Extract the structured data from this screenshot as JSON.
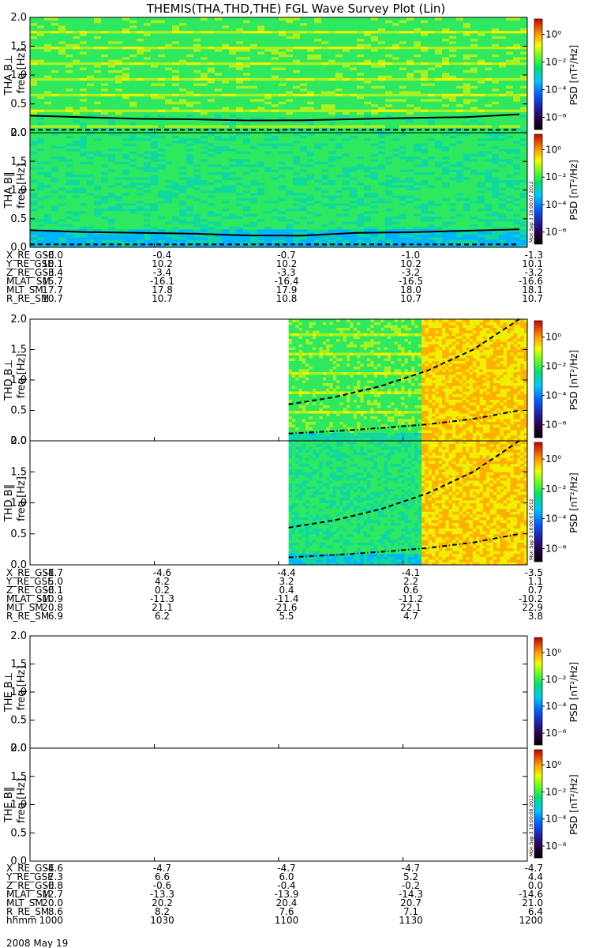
{
  "title": "THEMIS(THA,THD,THE) FGL Wave Survey Plot (Lin)",
  "colorbar_label": "PSD [nT²/Hz]",
  "colorbar_ticks": [
    "10⁰",
    "10⁻²",
    "10⁻⁴",
    "10⁻⁶"
  ],
  "freq_label": "freq [Hz]",
  "freq_ticks": [
    "2.0",
    "1.5",
    "1.0",
    "0.5",
    "0.0"
  ],
  "stamps": [
    "Mon Sep  3 18:00:07 2012",
    "Mon Sep  3 18:00:07 2012",
    "Mon Sep  3 18:00:08 2012"
  ],
  "date_label": "2008 May 19",
  "chart_data": [
    {
      "type": "heatmap",
      "probe": "THA",
      "panels": [
        "THA B⊥",
        "THA B‖"
      ],
      "ylabel": "freq [Hz]",
      "ylim": [
        0,
        2.0
      ],
      "data_coverage": [
        0,
        1
      ],
      "colorscale_log10": [
        -7,
        1
      ],
      "curves": {
        "solid_Hz": [
          0.3,
          0.28,
          0.25,
          0.22,
          0.2,
          0.22,
          0.25,
          0.27,
          0.28,
          0.3
        ],
        "dashed_Hz": [
          0.05,
          0.05
        ]
      }
    },
    {
      "type": "heatmap",
      "probe": "THD",
      "panels": [
        "THD B⊥",
        "THD B‖"
      ],
      "ylabel": "freq [Hz]",
      "ylim": [
        0,
        2.0
      ],
      "data_coverage": [
        0.52,
        1
      ],
      "colorscale_log10": [
        -7,
        1
      ],
      "curves": {
        "upper_dashed_Hz": [
          0.6,
          0.72,
          0.9,
          1.15,
          1.5,
          2.0
        ],
        "lower_dashdot_Hz": [
          0.12,
          0.16,
          0.21,
          0.27,
          0.36,
          0.5
        ]
      }
    },
    {
      "type": "heatmap",
      "probe": "THE",
      "panels": [
        "THE B⊥",
        "THE B‖"
      ],
      "ylabel": "freq [Hz]",
      "ylim": [
        0,
        2.0
      ],
      "data_coverage": [],
      "colorscale_log10": [
        -7,
        1
      ]
    }
  ],
  "orbit_tables": [
    {
      "rows": [
        {
          "label": "X_RE_GSE",
          "values": [
            "-0.0",
            "-0.4",
            "-0.7",
            "-1.0",
            "-1.3"
          ]
        },
        {
          "label": "Y_RE_GSE",
          "values": [
            "10.1",
            "10.2",
            "10.2",
            "10.2",
            "10.1"
          ]
        },
        {
          "label": "Z_RE_GSE",
          "values": [
            "-3.4",
            "-3.4",
            "-3.3",
            "-3.2",
            "-3.2"
          ]
        },
        {
          "label": "MLAT_SM",
          "values": [
            "-15.7",
            "-16.1",
            "-16.4",
            "-16.5",
            "-16.6"
          ]
        },
        {
          "label": "MLT_SM",
          "values": [
            "17.7",
            "17.8",
            "17.9",
            "18.0",
            "18.1"
          ]
        },
        {
          "label": "R_RE_SM",
          "values": [
            "10.7",
            "10.7",
            "10.8",
            "10.7",
            "10.7"
          ]
        }
      ]
    },
    {
      "rows": [
        {
          "label": "X_RE_GSE",
          "values": [
            "-4.7",
            "-4.6",
            "-4.4",
            "-4.1",
            "-3.5"
          ]
        },
        {
          "label": "Y_RE_GSE",
          "values": [
            "5.0",
            "4.2",
            "3.2",
            "2.2",
            "1.1"
          ]
        },
        {
          "label": "Z_RE_GSE",
          "values": [
            "-0.1",
            "0.2",
            "0.4",
            "0.6",
            "0.7"
          ]
        },
        {
          "label": "MLAT_SM",
          "values": [
            "-10.9",
            "-11.3",
            "-11.4",
            "-11.2",
            "-10.2"
          ]
        },
        {
          "label": "MLT_SM",
          "values": [
            "20.8",
            "21.1",
            "21.6",
            "22.1",
            "22.9"
          ]
        },
        {
          "label": "R_RE_SM",
          "values": [
            "6.9",
            "6.2",
            "5.5",
            "4.7",
            "3.8"
          ]
        }
      ]
    },
    {
      "rows": [
        {
          "label": "X_RE_GSE",
          "values": [
            "-4.6",
            "-4.7",
            "-4.7",
            "-4.7",
            "-4.7"
          ]
        },
        {
          "label": "Y_RE_GSE",
          "values": [
            "7.3",
            "6.6",
            "6.0",
            "5.2",
            "4.4"
          ]
        },
        {
          "label": "Z_RE_GSE",
          "values": [
            "-0.8",
            "-0.6",
            "-0.4",
            "-0.2",
            "0.0"
          ]
        },
        {
          "label": "MLAT_SM",
          "values": [
            "-12.7",
            "-13.3",
            "-13.9",
            "-14.3",
            "-14.6"
          ]
        },
        {
          "label": "MLT_SM",
          "values": [
            "20.0",
            "20.2",
            "20.4",
            "20.7",
            "21.0"
          ]
        },
        {
          "label": "R_RE_SM",
          "values": [
            "8.6",
            "8.2",
            "7.6",
            "7.1",
            "6.4"
          ]
        },
        {
          "label": "hhmm",
          "values": [
            "1000",
            "1030",
            "1100",
            "1130",
            "1200"
          ]
        }
      ]
    }
  ]
}
